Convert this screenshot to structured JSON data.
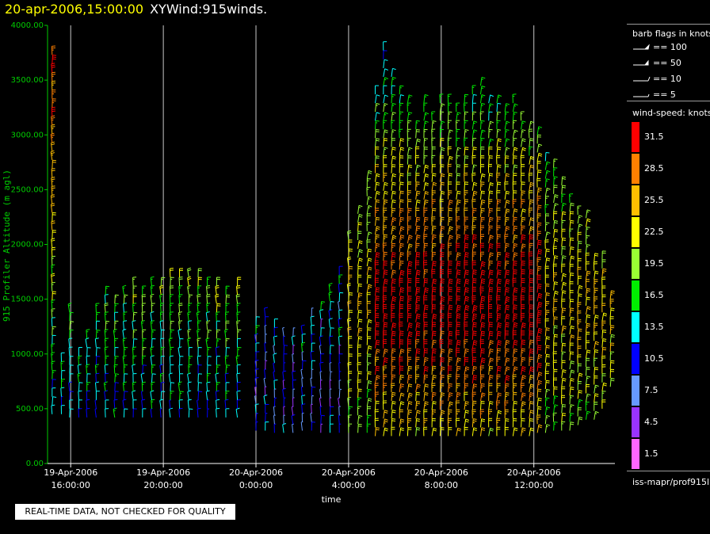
{
  "header": {
    "timestamp": "20-apr-2006,15:00:00",
    "title": "XYWind:915winds."
  },
  "colors": {
    "y_axis": "#00cc00",
    "gridline": "#c8c8c8",
    "background": "#000000"
  },
  "chart_data": {
    "type": "wind-barb time-height",
    "ylabel": "915 Profiler Altitude (m agl)",
    "xlabel": "time",
    "ylim": [
      0,
      4000
    ],
    "y_ticks": [
      "0.00",
      "500.00",
      "1000.00",
      "1500.00",
      "2000.00",
      "2500.00",
      "3000.00",
      "3500.00",
      "4000.00"
    ],
    "x_ticks": [
      {
        "date": "19-Apr-2006",
        "time": "16:00:00"
      },
      {
        "date": "19-Apr-2006",
        "time": "20:00:00"
      },
      {
        "date": "20-Apr-2006",
        "time": "0:00:00"
      },
      {
        "date": "20-Apr-2006",
        "time": "4:00:00"
      },
      {
        "date": "20-Apr-2006",
        "time": "8:00:00"
      },
      {
        "date": "20-Apr-2006",
        "time": "12:00:00"
      }
    ],
    "xlim_hours": [
      -1,
      23.5
    ],
    "vertical_grid": true,
    "profiles": [
      {
        "t": -0.8,
        "bottom": 450,
        "top": 3800
      },
      {
        "t": -0.4,
        "bottom": 450,
        "top": 1000
      },
      {
        "t": -0.05,
        "bottom": 420,
        "top": 1450
      },
      {
        "t": 0.35,
        "bottom": 420,
        "top": 1050
      },
      {
        "t": 0.7,
        "bottom": 420,
        "top": 1150
      },
      {
        "t": 1.1,
        "bottom": 420,
        "top": 1380
      },
      {
        "t": 1.5,
        "bottom": 420,
        "top": 1560
      },
      {
        "t": 1.9,
        "bottom": 420,
        "top": 1520
      },
      {
        "t": 2.3,
        "bottom": 420,
        "top": 1600
      },
      {
        "t": 2.7,
        "bottom": 420,
        "top": 1650
      },
      {
        "t": 3.1,
        "bottom": 420,
        "top": 1600
      },
      {
        "t": 3.5,
        "bottom": 420,
        "top": 1650
      },
      {
        "t": 3.9,
        "bottom": 420,
        "top": 1650
      },
      {
        "t": 4.3,
        "bottom": 420,
        "top": 1700
      },
      {
        "t": 4.7,
        "bottom": 420,
        "top": 1760
      },
      {
        "t": 5.1,
        "bottom": 420,
        "top": 1750
      },
      {
        "t": 5.5,
        "bottom": 420,
        "top": 1700
      },
      {
        "t": 5.9,
        "bottom": 420,
        "top": 1650
      },
      {
        "t": 6.3,
        "bottom": 420,
        "top": 1650
      },
      {
        "t": 6.7,
        "bottom": 420,
        "top": 1600
      },
      {
        "t": 7.2,
        "bottom": 420,
        "top": 1680
      },
      {
        "t": 8.0,
        "bottom": 300,
        "top": 1300
      },
      {
        "t": 8.4,
        "bottom": 300,
        "top": 1350
      },
      {
        "t": 8.8,
        "bottom": 280,
        "top": 1300
      },
      {
        "t": 9.2,
        "bottom": 280,
        "top": 1200
      },
      {
        "t": 9.6,
        "bottom": 280,
        "top": 1200
      },
      {
        "t": 10.0,
        "bottom": 300,
        "top": 1250
      },
      {
        "t": 10.4,
        "bottom": 300,
        "top": 1350
      },
      {
        "t": 10.8,
        "bottom": 280,
        "top": 1450
      },
      {
        "t": 11.2,
        "bottom": 280,
        "top": 1600
      },
      {
        "t": 11.6,
        "bottom": 280,
        "top": 1750
      },
      {
        "t": 12.0,
        "bottom": 280,
        "top": 2100
      },
      {
        "t": 12.4,
        "bottom": 280,
        "top": 2300
      },
      {
        "t": 12.8,
        "bottom": 280,
        "top": 2600
      },
      {
        "t": 13.15,
        "bottom": 250,
        "top": 3400
      },
      {
        "t": 13.5,
        "bottom": 250,
        "top": 3800
      },
      {
        "t": 13.85,
        "bottom": 250,
        "top": 3600
      },
      {
        "t": 14.2,
        "bottom": 250,
        "top": 3400
      },
      {
        "t": 14.55,
        "bottom": 250,
        "top": 3300
      },
      {
        "t": 14.9,
        "bottom": 250,
        "top": 3100
      },
      {
        "t": 15.25,
        "bottom": 250,
        "top": 3300
      },
      {
        "t": 15.6,
        "bottom": 250,
        "top": 3200
      },
      {
        "t": 15.95,
        "bottom": 250,
        "top": 3350
      },
      {
        "t": 16.3,
        "bottom": 250,
        "top": 3300
      },
      {
        "t": 16.65,
        "bottom": 250,
        "top": 3250
      },
      {
        "t": 17.0,
        "bottom": 250,
        "top": 3300
      },
      {
        "t": 17.35,
        "bottom": 250,
        "top": 3400
      },
      {
        "t": 17.7,
        "bottom": 250,
        "top": 3450
      },
      {
        "t": 18.05,
        "bottom": 250,
        "top": 3350
      },
      {
        "t": 18.4,
        "bottom": 250,
        "top": 3300
      },
      {
        "t": 18.75,
        "bottom": 250,
        "top": 3250
      },
      {
        "t": 19.1,
        "bottom": 250,
        "top": 3300
      },
      {
        "t": 19.45,
        "bottom": 250,
        "top": 3200
      },
      {
        "t": 19.8,
        "bottom": 250,
        "top": 3100
      },
      {
        "t": 20.15,
        "bottom": 280,
        "top": 3000
      },
      {
        "t": 20.5,
        "bottom": 280,
        "top": 2800
      },
      {
        "t": 20.85,
        "bottom": 300,
        "top": 2700
      },
      {
        "t": 21.2,
        "bottom": 300,
        "top": 2600
      },
      {
        "t": 21.55,
        "bottom": 300,
        "top": 2400
      },
      {
        "t": 21.9,
        "bottom": 350,
        "top": 2300
      },
      {
        "t": 22.25,
        "bottom": 400,
        "top": 2300
      },
      {
        "t": 22.6,
        "bottom": 400,
        "top": 1900
      },
      {
        "t": 22.95,
        "bottom": 500,
        "top": 1900
      },
      {
        "t": 23.3,
        "bottom": 700,
        "top": 1500
      }
    ]
  },
  "legend": {
    "barb_title": "barb flags in knots",
    "barbs": [
      {
        "label": "== 100"
      },
      {
        "label": "== 50"
      },
      {
        "label": "== 10"
      },
      {
        "label": "== 5"
      }
    ],
    "speed_title": "wind-speed: knots",
    "speeds": [
      {
        "label": "31.5",
        "color": "#ff0000"
      },
      {
        "label": "28.5",
        "color": "#ff8000"
      },
      {
        "label": "25.5",
        "color": "#ffbf00"
      },
      {
        "label": "22.5",
        "color": "#ffff00"
      },
      {
        "label": "19.5",
        "color": "#99ff33"
      },
      {
        "label": "16.5",
        "color": "#00ee00"
      },
      {
        "label": "13.5",
        "color": "#00ffff"
      },
      {
        "label": "10.5",
        "color": "#0000ff"
      },
      {
        "label": "7.5",
        "color": "#6699ff"
      },
      {
        "label": "4.5",
        "color": "#9933ff"
      },
      {
        "label": "1.5",
        "color": "#ff66ff"
      }
    ],
    "source": "iss-mapr/prof915l"
  },
  "footer": {
    "qc_notice": "REAL-TIME DATA, NOT CHECKED FOR QUALITY"
  }
}
